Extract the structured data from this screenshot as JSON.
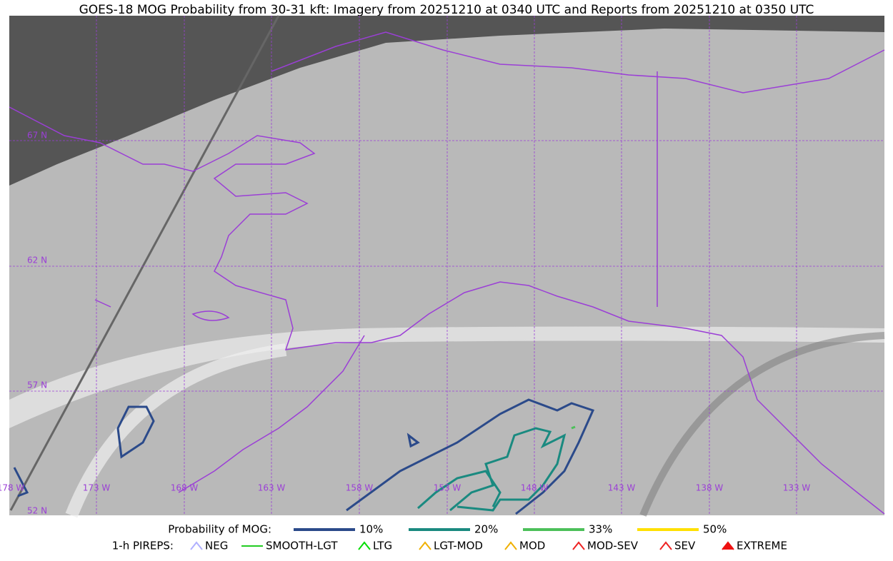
{
  "title": "GOES-18 MOG Probability from 30-31 kft: Imagery from 20251210 at 0340 UTC and Reports from 20251210 at 0350 UTC",
  "latitude_labels": [
    "67 N",
    "62 N",
    "57 N",
    "52 N"
  ],
  "longitude_labels": [
    "178 W",
    "173 W",
    "168 W",
    "163 W",
    "158 W",
    "153 W",
    "148 W",
    "143 W",
    "138 W",
    "133 W"
  ],
  "legend": {
    "probability": {
      "label": "Probability of MOG:",
      "items": [
        {
          "label": "10%",
          "color": "#2b4a8a"
        },
        {
          "label": "20%",
          "color": "#1a8a80"
        },
        {
          "label": "33%",
          "color": "#4cc05a"
        },
        {
          "label": "50%",
          "color": "#ffe000"
        }
      ]
    },
    "pireps": {
      "label": "1-h PIREPS:",
      "items": [
        {
          "label": "NEG",
          "color": "#b0b0ff"
        },
        {
          "label": "SMOOTH-LGT",
          "color": "#22cc22"
        },
        {
          "label": "LTG",
          "color": "#00dd00"
        },
        {
          "label": "LGT-MOD",
          "color": "#f0b000"
        },
        {
          "label": "MOD",
          "color": "#f0b000"
        },
        {
          "label": "MOD-SEV",
          "color": "#ee2222"
        },
        {
          "label": "SEV",
          "color": "#ee2222"
        },
        {
          "label": "EXTREME",
          "color": "#ee1111"
        }
      ]
    }
  }
}
